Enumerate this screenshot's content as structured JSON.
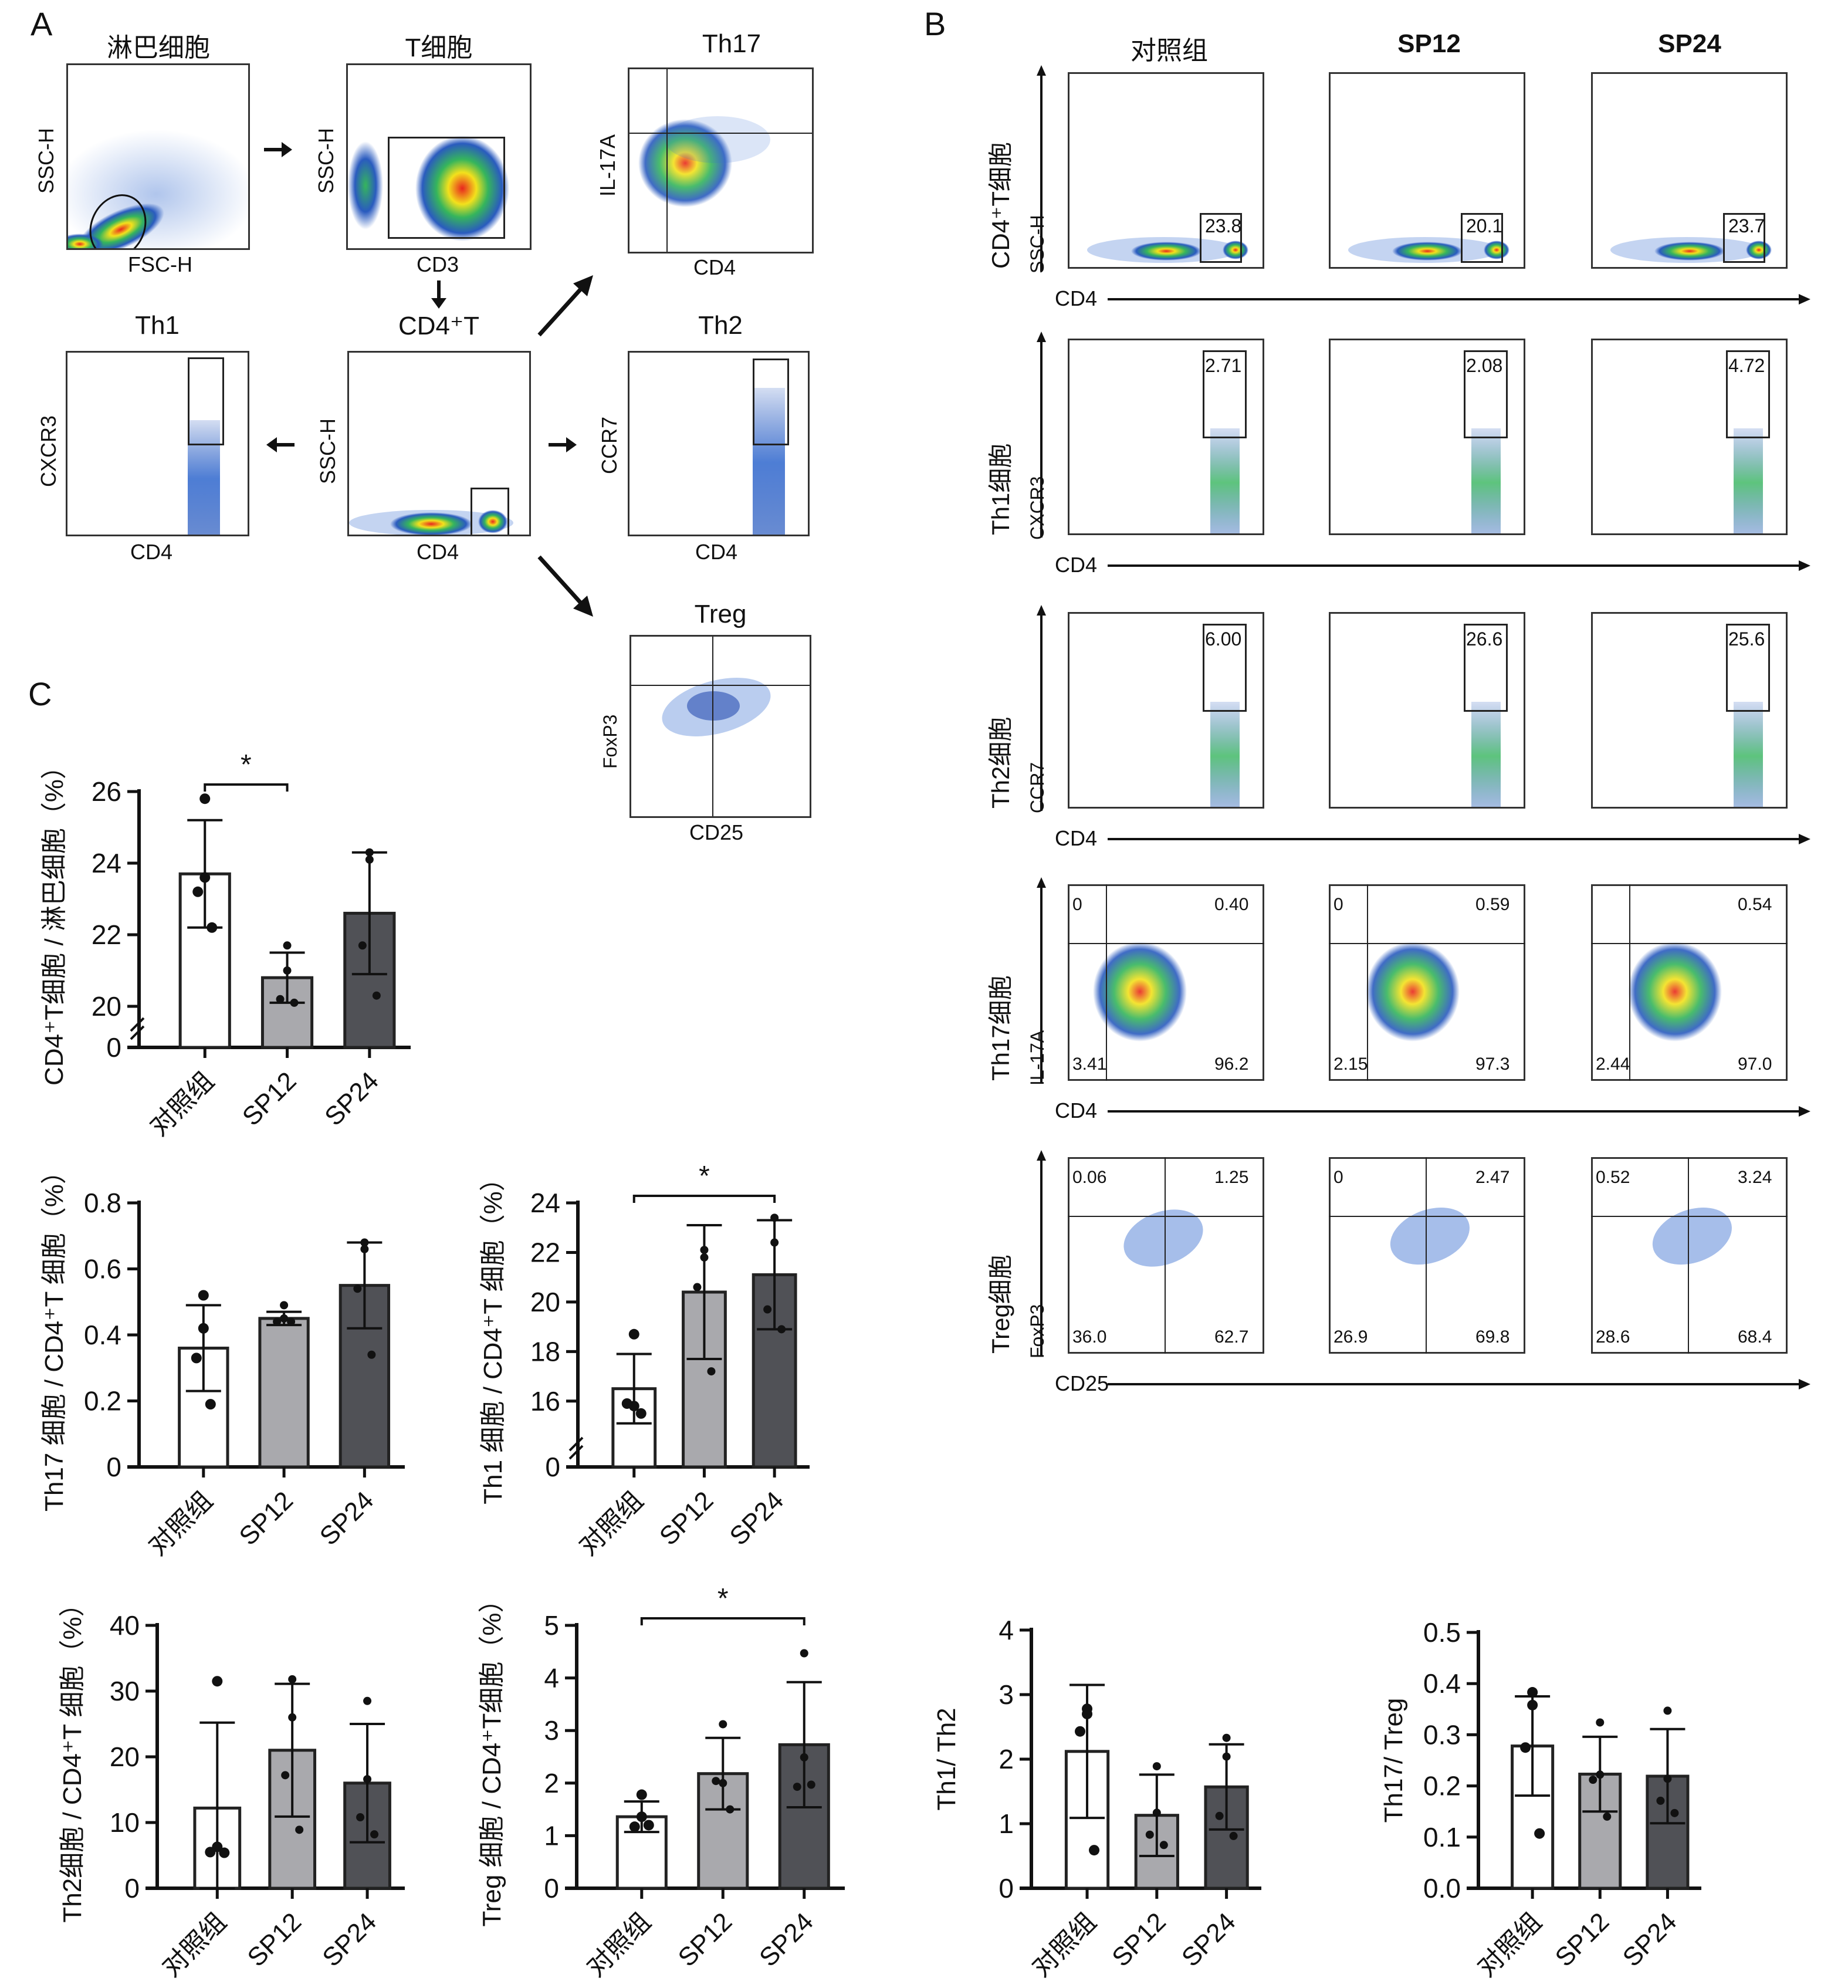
{
  "panels": {
    "A": {
      "letter": "A",
      "plots": {
        "lymph": {
          "title": "淋巴细胞",
          "x_label": "FSC-H",
          "y_label": "SSC-H"
        },
        "tcell": {
          "title": "T细胞",
          "x_label": "CD3",
          "y_label": "SSC-H"
        },
        "th17": {
          "title": "Th17",
          "x_label": "CD4",
          "y_label": "IL-17A"
        },
        "th1": {
          "title": "Th1",
          "x_label": "CD4",
          "y_label": "CXCR3"
        },
        "cd4t": {
          "title": "CD4⁺T",
          "x_label": "CD4",
          "y_label": "SSC-H"
        },
        "th2": {
          "title": "Th2",
          "x_label": "CD4",
          "y_label": "CCR7"
        },
        "treg": {
          "title": "Treg",
          "x_label": "CD25",
          "y_label": "FoxP3"
        }
      }
    },
    "B": {
      "letter": "B",
      "columns": [
        "对照组",
        "SP12",
        "SP24"
      ],
      "rows": [
        {
          "label": "CD4⁺T细胞",
          "y_axis": "SSC-H",
          "x_axis": "CD4",
          "type": "gate-low",
          "values": [
            "23.8",
            "20.1",
            "23.7"
          ]
        },
        {
          "label": "Th1细胞",
          "y_axis": "CXCR3",
          "x_axis": "CD4",
          "type": "gate-top",
          "values": [
            "2.71",
            "2.08",
            "4.72"
          ]
        },
        {
          "label": "Th2细胞",
          "y_axis": "CCR7",
          "x_axis": "CD4",
          "type": "gate-top",
          "values": [
            "6.00",
            "26.6",
            "25.6"
          ]
        },
        {
          "label": "Th17细胞",
          "y_axis": "IL-17A",
          "x_axis": "CD4",
          "type": "quad",
          "quadrants": [
            {
              "ul": "0",
              "ur": "0.40",
              "ll": "3.41",
              "lr": "96.2"
            },
            {
              "ul": "0",
              "ur": "0.59",
              "ll": "2.15",
              "lr": "97.3"
            },
            {
              "ul": "",
              "ur": "0.54",
              "ll": "2.44",
              "lr": "97.0"
            }
          ]
        },
        {
          "label": "Treg细胞",
          "y_axis": "FoxP3",
          "x_axis": "CD25",
          "type": "quad",
          "quadrants": [
            {
              "ul": "0.06",
              "ur": "1.25",
              "ll": "36.0",
              "lr": "62.7"
            },
            {
              "ul": "0",
              "ur": "2.47",
              "ll": "26.9",
              "lr": "69.8"
            },
            {
              "ul": "0.52",
              "ur": "3.24",
              "ll": "28.6",
              "lr": "68.4"
            }
          ]
        }
      ]
    },
    "C": {
      "letter": "C"
    }
  },
  "colors": {
    "bar_control": "#ffffff",
    "bar_sp12": "#a9a9ad",
    "bar_sp24": "#505156",
    "axis": "#111111"
  },
  "chart_data": [
    {
      "id": "cd4t",
      "type": "bar",
      "title": "",
      "categories": [
        "对照组",
        "SP12",
        "SP24"
      ],
      "ylabel": "CD4⁺T细胞 / 淋巴细胞（%）",
      "ylim": [
        20,
        26
      ],
      "axis_break": true,
      "yticks": [
        0,
        20,
        22,
        24,
        26
      ],
      "series": [
        {
          "name": "mean",
          "values": [
            23.7,
            20.8,
            22.6
          ]
        }
      ],
      "sd": [
        1.5,
        0.7,
        1.7
      ],
      "points": [
        [
          25.8,
          23.6,
          23.2,
          22.2
        ],
        [
          21.7,
          21.0,
          20.2,
          20.1
        ],
        [
          24.3,
          24.1,
          21.7,
          20.3
        ]
      ],
      "significance": [
        {
          "from": 0,
          "to": 1,
          "label": "*"
        }
      ]
    },
    {
      "id": "th17",
      "type": "bar",
      "categories": [
        "对照组",
        "SP12",
        "SP24"
      ],
      "ylabel": "Th17 细胞 / CD4⁺T 细胞（%）",
      "ylim": [
        0,
        0.8
      ],
      "yticks": [
        0,
        0.2,
        0.4,
        0.6,
        0.8
      ],
      "series": [
        {
          "name": "mean",
          "values": [
            0.36,
            0.45,
            0.55
          ]
        }
      ],
      "sd": [
        0.13,
        0.02,
        0.13
      ],
      "points": [
        [
          0.52,
          0.42,
          0.33,
          0.19
        ],
        [
          0.49,
          0.45,
          0.44,
          0.44
        ],
        [
          0.68,
          0.66,
          0.54,
          0.34
        ]
      ],
      "significance": []
    },
    {
      "id": "th1",
      "type": "bar",
      "categories": [
        "对照组",
        "SP12",
        "SP24"
      ],
      "ylabel": "Th1 细胞 / CD4⁺T 细胞（%）",
      "ylim": [
        15,
        24
      ],
      "axis_break": true,
      "yticks": [
        0,
        16,
        18,
        20,
        22,
        24
      ],
      "series": [
        {
          "name": "mean",
          "values": [
            16.5,
            20.4,
            21.1
          ]
        }
      ],
      "sd": [
        1.4,
        2.7,
        2.2
      ],
      "points": [
        [
          18.7,
          15.8,
          15.9,
          15.5
        ],
        [
          22.1,
          21.8,
          20.6,
          17.2
        ],
        [
          23.4,
          22.4,
          19.7,
          18.9
        ]
      ],
      "significance": [
        {
          "from": 0,
          "to": 2,
          "label": "*"
        }
      ]
    },
    {
      "id": "th2",
      "type": "bar",
      "categories": [
        "对照组",
        "SP12",
        "SP24"
      ],
      "ylabel": "Th2细胞 / CD4⁺T 细胞（%）",
      "ylim": [
        0,
        40
      ],
      "yticks": [
        0,
        10,
        20,
        30,
        40
      ],
      "series": [
        {
          "name": "mean",
          "values": [
            12.2,
            21.0,
            16.0
          ]
        }
      ],
      "sd": [
        13.0,
        10.1,
        9.0
      ],
      "points": [
        [
          31.5,
          6.3,
          5.5,
          5.4
        ],
        [
          31.8,
          26.0,
          17.2,
          8.9
        ],
        [
          28.5,
          16.6,
          10.8,
          8.2
        ]
      ],
      "significance": []
    },
    {
      "id": "treg",
      "type": "bar",
      "categories": [
        "对照组",
        "SP12",
        "SP24"
      ],
      "ylabel": "Treg 细胞 / CD4⁺T细胞（%）",
      "ylim": [
        0,
        5
      ],
      "yticks": [
        0,
        1,
        2,
        3,
        4,
        5
      ],
      "series": [
        {
          "name": "mean",
          "values": [
            1.36,
            2.18,
            2.73
          ]
        }
      ],
      "sd": [
        0.29,
        0.68,
        1.19
      ],
      "points": [
        [
          1.78,
          1.36,
          1.17,
          1.2
        ],
        [
          3.12,
          2.0,
          2.04,
          1.5
        ],
        [
          4.47,
          2.49,
          1.93,
          1.97
        ]
      ],
      "significance": [
        {
          "from": 0,
          "to": 2,
          "label": "*"
        }
      ]
    },
    {
      "id": "th1th2",
      "type": "bar",
      "categories": [
        "对照组",
        "SP12",
        "SP24"
      ],
      "ylabel": "Th1/ Th2",
      "ylim": [
        0,
        4
      ],
      "yticks": [
        0,
        1,
        2,
        3,
        4
      ],
      "series": [
        {
          "name": "mean",
          "values": [
            2.12,
            1.13,
            1.57
          ]
        }
      ],
      "sd": [
        1.03,
        0.63,
        0.66
      ],
      "points": [
        [
          2.78,
          2.7,
          2.43,
          0.59
        ],
        [
          1.89,
          1.17,
          0.83,
          0.67
        ],
        [
          2.33,
          2.04,
          1.12,
          0.81
        ]
      ],
      "significance": []
    },
    {
      "id": "th17treg",
      "type": "bar",
      "categories": [
        "对照组",
        "SP12",
        "SP24"
      ],
      "ylabel": "Th17/ Treg",
      "ylim": [
        0,
        0.5
      ],
      "yticks": [
        0.0,
        0.1,
        0.2,
        0.3,
        0.4,
        0.5
      ],
      "series": [
        {
          "name": "mean",
          "values": [
            0.278,
            0.223,
            0.219
          ]
        }
      ],
      "sd": [
        0.097,
        0.073,
        0.092
      ],
      "points": [
        [
          0.383,
          0.358,
          0.275,
          0.107
        ],
        [
          0.324,
          0.222,
          0.212,
          0.14
        ],
        [
          0.347,
          0.214,
          0.171,
          0.147
        ]
      ],
      "significance": []
    }
  ]
}
